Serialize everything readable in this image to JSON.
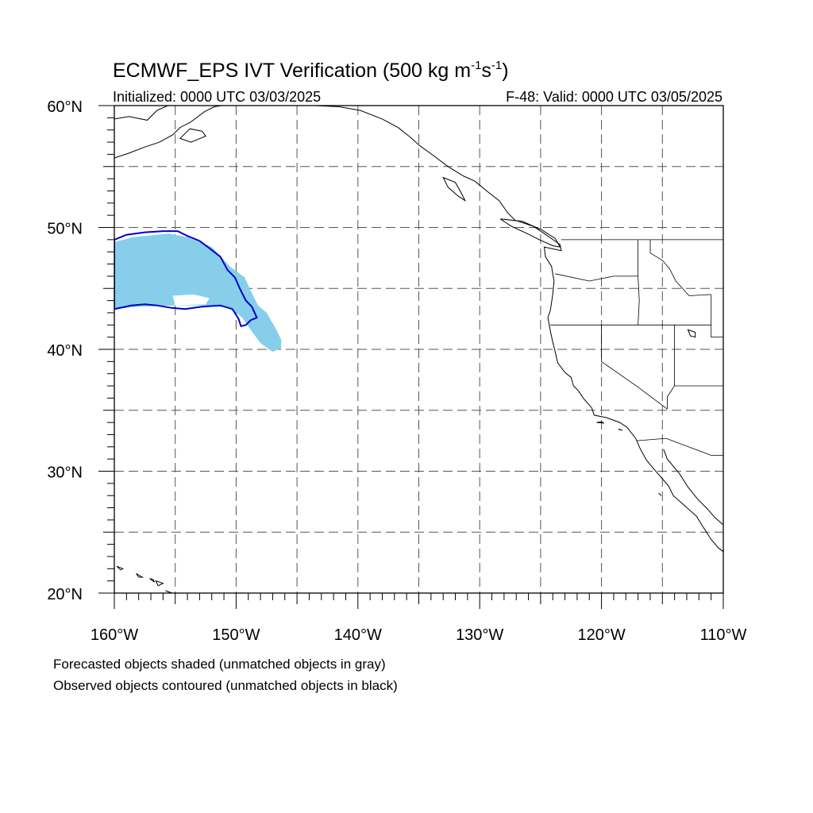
{
  "title": {
    "main": "ECMWF_EPS IVT Verification (500 kg m",
    "exp1": "-1",
    "mid": "s",
    "exp2": "-1",
    "close": ")"
  },
  "subtitle": {
    "initialized": "Initialized: 0000 UTC 03/03/2025",
    "valid": "F-48: Valid: 0000 UTC 03/05/2025"
  },
  "map": {
    "lon_range": [
      -160,
      -110
    ],
    "lat_range": [
      20,
      60
    ],
    "grid_lons": [
      -155,
      -150,
      -145,
      -140,
      -135,
      -130,
      -125,
      -120,
      -115
    ],
    "grid_lats": [
      25,
      30,
      35,
      40,
      45,
      50,
      55
    ],
    "lat_labels": [
      {
        "lat": 60,
        "text": "60°N"
      },
      {
        "lat": 50,
        "text": "50°N"
      },
      {
        "lat": 40,
        "text": "40°N"
      },
      {
        "lat": 30,
        "text": "30°N"
      },
      {
        "lat": 20,
        "text": "20°N"
      }
    ],
    "lon_labels": [
      {
        "lon": -160,
        "text": "160°W"
      },
      {
        "lon": -150,
        "text": "150°W"
      },
      {
        "lon": -140,
        "text": "140°W"
      },
      {
        "lon": -130,
        "text": "130°W"
      },
      {
        "lon": -120,
        "text": "120°W"
      },
      {
        "lon": -110,
        "text": "110°W"
      }
    ],
    "colors": {
      "forecast_fill": "#87CEEB",
      "observed_contour": "#0000CC",
      "grid": "#555555",
      "coast": "#000000"
    }
  },
  "forecast_object": {
    "matched": true,
    "outline": [
      [
        -160,
        48.8
      ],
      [
        -158.5,
        49.2
      ],
      [
        -155.5,
        49.5
      ],
      [
        -154,
        49.2
      ],
      [
        -152,
        48.4
      ],
      [
        -150.5,
        46.8
      ],
      [
        -149.3,
        45.9
      ],
      [
        -148.8,
        44.8
      ],
      [
        -148.2,
        43.6
      ],
      [
        -147.5,
        43
      ],
      [
        -146.8,
        41.8
      ],
      [
        -146.3,
        40.8
      ],
      [
        -146.3,
        40.1
      ],
      [
        -147,
        39.8
      ],
      [
        -148,
        40.5
      ],
      [
        -148.8,
        41.6
      ],
      [
        -149.5,
        42.6
      ],
      [
        -150.5,
        43.4
      ],
      [
        -152.5,
        43.6
      ],
      [
        -155,
        43.6
      ],
      [
        -158,
        43.5
      ],
      [
        -160,
        43.3
      ]
    ],
    "gap": [
      [
        -155.2,
        44.4
      ],
      [
        -153.5,
        44.5
      ],
      [
        -152.2,
        44.2
      ],
      [
        -152.5,
        43.7
      ],
      [
        -155,
        43.6
      ]
    ]
  },
  "observed_object": {
    "matched": true,
    "outline": [
      [
        -160,
        49.0
      ],
      [
        -159,
        49.4
      ],
      [
        -157.5,
        49.6
      ],
      [
        -156,
        49.7
      ],
      [
        -154.8,
        49.7
      ],
      [
        -154,
        49.3
      ],
      [
        -153,
        48.9
      ],
      [
        -152.2,
        48.3
      ],
      [
        -151.3,
        47.6
      ],
      [
        -150.7,
        46.5
      ],
      [
        -150.1,
        45.9
      ],
      [
        -149.7,
        45.0
      ],
      [
        -149.2,
        44.0
      ],
      [
        -148.7,
        43.5
      ],
      [
        -148.3,
        42.6
      ],
      [
        -148.8,
        42.4
      ],
      [
        -149.2,
        42.0
      ],
      [
        -149.6,
        41.9
      ],
      [
        -149.8,
        42.5
      ],
      [
        -150.3,
        43.3
      ],
      [
        -151.3,
        43.6
      ],
      [
        -152.8,
        43.5
      ],
      [
        -154.2,
        43.3
      ],
      [
        -155.3,
        43.4
      ],
      [
        -156.5,
        43.6
      ],
      [
        -157.5,
        43.7
      ],
      [
        -158.6,
        43.6
      ],
      [
        -160,
        43.3
      ]
    ]
  },
  "land": {
    "alaska": [
      [
        -160,
        55.7
      ],
      [
        -158.8,
        56.1
      ],
      [
        -157.5,
        56.6
      ],
      [
        -156.3,
        57.0
      ],
      [
        -155.2,
        57.6
      ],
      [
        -154.6,
        58.2
      ],
      [
        -153.8,
        58.6
      ],
      [
        -152.6,
        59.5
      ],
      [
        -151.8,
        59.9
      ],
      [
        -151.2,
        60
      ]
    ],
    "alaska_2": [
      [
        -160,
        58.9
      ],
      [
        -158.8,
        59.1
      ],
      [
        -157.3,
        58.8
      ],
      [
        -156.5,
        59.6
      ],
      [
        -155.6,
        60
      ]
    ],
    "kodiak": [
      [
        -154.6,
        57.3
      ],
      [
        -153.7,
        57.0
      ],
      [
        -152.5,
        57.5
      ],
      [
        -152.8,
        57.9
      ],
      [
        -153.8,
        58.1
      ],
      [
        -154.6,
        57.3
      ]
    ],
    "se_alaska_bc": [
      [
        -146.0,
        60
      ],
      [
        -145.0,
        60.3
      ],
      [
        -143.5,
        60.0
      ],
      [
        -141.5,
        59.9
      ],
      [
        -139.8,
        59.6
      ],
      [
        -138.0,
        58.9
      ],
      [
        -136.7,
        58.2
      ],
      [
        -135.7,
        57.4
      ],
      [
        -134.9,
        56.7
      ],
      [
        -133.8,
        55.9
      ],
      [
        -132.6,
        55.0
      ],
      [
        -131.3,
        54.2
      ],
      [
        -130.4,
        53.8
      ],
      [
        -129.3,
        52.9
      ],
      [
        -128.4,
        52.2
      ],
      [
        -127.7,
        51.2
      ],
      [
        -127.1,
        50.6
      ],
      [
        -125.6,
        50.1
      ],
      [
        -124.7,
        49.5
      ],
      [
        -123.4,
        48.6
      ],
      [
        -123.3,
        48.1
      ],
      [
        -124.7,
        48.4
      ],
      [
        -124.6,
        47.6
      ],
      [
        -124.1,
        46.8
      ],
      [
        -123.9,
        45.6
      ],
      [
        -124.0,
        44.5
      ],
      [
        -124.2,
        43.2
      ],
      [
        -124.4,
        42.6
      ],
      [
        -124.2,
        41.5
      ],
      [
        -124.0,
        40.6
      ],
      [
        -123.8,
        39.8
      ],
      [
        -123.6,
        38.9
      ],
      [
        -123.0,
        38.1
      ],
      [
        -122.5,
        37.7
      ],
      [
        -122.3,
        37.0
      ],
      [
        -121.9,
        36.6
      ],
      [
        -121.5,
        36.0
      ],
      [
        -120.8,
        35.2
      ],
      [
        -120.6,
        34.6
      ],
      [
        -119.6,
        34.4
      ],
      [
        -118.5,
        34.0
      ],
      [
        -117.9,
        33.6
      ],
      [
        -117.2,
        32.7
      ],
      [
        -116.8,
        31.8
      ],
      [
        -116.3,
        30.9
      ],
      [
        -115.8,
        30.3
      ],
      [
        -115.2,
        29.6
      ],
      [
        -114.5,
        28.8
      ],
      [
        -114.1,
        28.0
      ],
      [
        -113.2,
        27.2
      ],
      [
        -112.2,
        26.3
      ],
      [
        -111.7,
        25.5
      ],
      [
        -111.0,
        24.4
      ],
      [
        -110.4,
        23.7
      ],
      [
        -110,
        23.4
      ]
    ],
    "gulf_east": [
      [
        -114.9,
        31.8
      ],
      [
        -114.6,
        31.0
      ],
      [
        -113.6,
        29.8
      ],
      [
        -112.9,
        28.7
      ],
      [
        -112.1,
        27.7
      ],
      [
        -111.3,
        26.9
      ],
      [
        -110.7,
        26.2
      ],
      [
        -110,
        25.6
      ]
    ],
    "vancouver_island": [
      [
        -128.3,
        50.7
      ],
      [
        -127.4,
        50.1
      ],
      [
        -126.1,
        49.5
      ],
      [
        -125.1,
        49.0
      ],
      [
        -124.0,
        48.5
      ],
      [
        -123.4,
        48.4
      ],
      [
        -123.8,
        49.1
      ],
      [
        -124.9,
        49.8
      ],
      [
        -126.5,
        50.5
      ],
      [
        -128.3,
        50.7
      ]
    ],
    "haida_gwaii": [
      [
        -133.0,
        54.1
      ],
      [
        -132.0,
        53.7
      ],
      [
        -131.5,
        52.8
      ],
      [
        -131.2,
        52.2
      ],
      [
        -131.8,
        52.6
      ],
      [
        -132.6,
        53.3
      ],
      [
        -133.0,
        54.1
      ]
    ],
    "hawaii": [
      [
        [
          -159.8,
          22.2
        ],
        [
          -159.3,
          22.0
        ],
        [
          -159.5,
          21.9
        ],
        [
          -159.8,
          22.2
        ]
      ],
      [
        [
          -158.2,
          21.6
        ],
        [
          -157.7,
          21.3
        ],
        [
          -158.0,
          21.3
        ],
        [
          -158.2,
          21.6
        ]
      ],
      [
        [
          -157.1,
          21.2
        ],
        [
          -156.8,
          21.1
        ],
        [
          -156.7,
          20.9
        ],
        [
          -157.1,
          21.2
        ]
      ],
      [
        [
          -156.6,
          21.0
        ],
        [
          -156.0,
          20.8
        ],
        [
          -156.4,
          20.6
        ],
        [
          -156.6,
          21.0
        ]
      ],
      [
        [
          -155.8,
          20.2
        ],
        [
          -155.0,
          19.9
        ],
        [
          -155.3,
          20.0
        ],
        [
          -155.8,
          20.2
        ]
      ]
    ],
    "great_salt_lake": [
      [
        -112.9,
        41.6
      ],
      [
        -112.3,
        41.4
      ],
      [
        -112.3,
        41.0
      ],
      [
        -112.7,
        41.1
      ],
      [
        -112.9,
        41.6
      ]
    ],
    "channel_islands": [
      [
        [
          -120.4,
          34.0
        ],
        [
          -119.8,
          33.95
        ],
        [
          -120.0,
          34.05
        ],
        [
          -120.4,
          34.0
        ]
      ],
      [
        [
          -118.6,
          33.45
        ],
        [
          -118.3,
          33.35
        ],
        [
          -118.5,
          33.4
        ],
        [
          -118.6,
          33.45
        ]
      ],
      [
        [
          -115.3,
          28.2
        ],
        [
          -115.1,
          28.0
        ],
        [
          -115.2,
          28.1
        ],
        [
          -115.3,
          28.2
        ]
      ]
    ],
    "borders": [
      [
        [
          -123.3,
          49.0
        ],
        [
          -110,
          49.0
        ]
      ],
      [
        [
          -141.0,
          60
        ],
        [
          -141.0,
          60.0
        ]
      ],
      [
        [
          -124.2,
          42.0
        ],
        [
          -111.0,
          42.0
        ]
      ],
      [
        [
          -117.0,
          49.0
        ],
        [
          -117.0,
          46.0
        ],
        [
          -116.9,
          44.0
        ],
        [
          -117.0,
          42.0
        ]
      ],
      [
        [
          -123.8,
          46.2
        ],
        [
          -121.0,
          45.6
        ],
        [
          -119.0,
          46.0
        ],
        [
          -117.0,
          46.0
        ]
      ],
      [
        [
          -116.0,
          49.0
        ],
        [
          -116.0,
          47.9
        ],
        [
          -115.0,
          47.3
        ],
        [
          -114.4,
          46.6
        ],
        [
          -113.9,
          45.6
        ],
        [
          -112.8,
          44.4
        ],
        [
          -111.0,
          44.5
        ]
      ],
      [
        [
          -120.0,
          42.0
        ],
        [
          -120.0,
          39.0
        ],
        [
          -117.0,
          36.9
        ],
        [
          -114.6,
          35.1
        ]
      ],
      [
        [
          -114.0,
          42.0
        ],
        [
          -114.0,
          37.0
        ],
        [
          -114.6,
          36.1
        ],
        [
          -114.6,
          35.1
        ]
      ],
      [
        [
          -114.0,
          37.0
        ],
        [
          -110,
          37.0
        ]
      ],
      [
        [
          -111.0,
          44.5
        ],
        [
          -111.0,
          41.0
        ],
        [
          -110,
          41.0
        ]
      ],
      [
        [
          -117.1,
          32.5
        ],
        [
          -114.7,
          32.7
        ],
        [
          -111.0,
          31.3
        ],
        [
          -110,
          31.3
        ]
      ]
    ]
  },
  "footnotes": {
    "line1": "Forecasted objects shaded (unmatched objects in gray)",
    "line2": "Observed objects contoured (unmatched objects in black)"
  }
}
